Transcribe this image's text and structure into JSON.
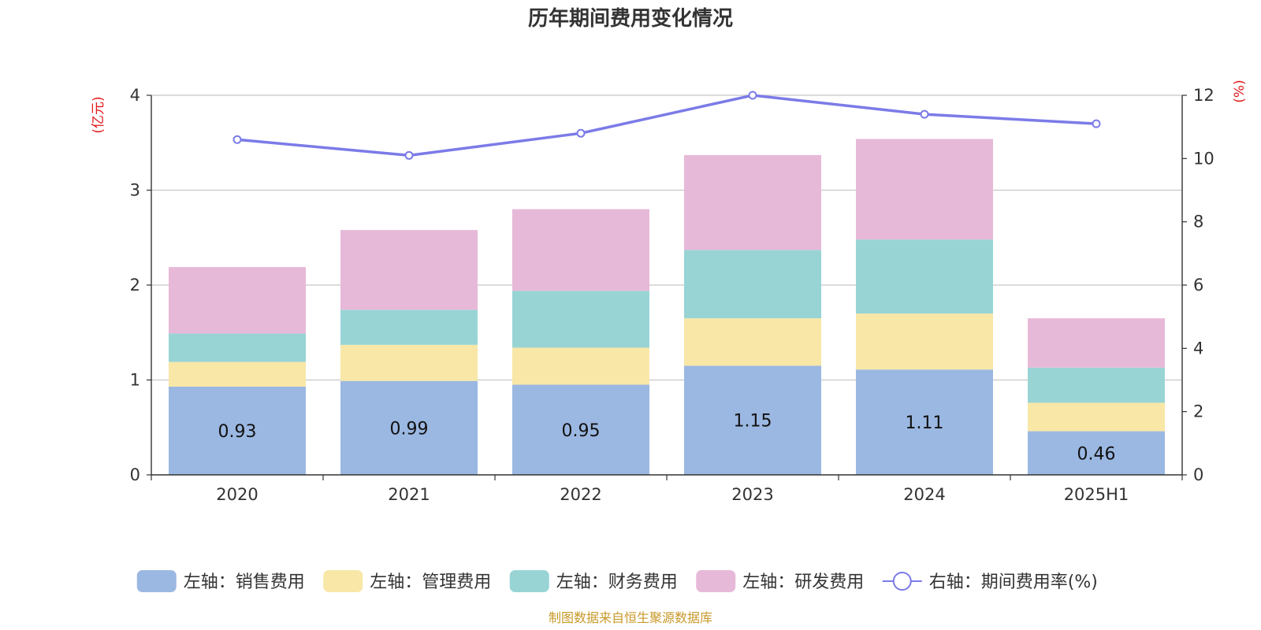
{
  "chart_data": {
    "type": "bar",
    "stacked": true,
    "title": "历年期间费用变化情况",
    "categories": [
      "2020",
      "2021",
      "2022",
      "2023",
      "2024",
      "2025H1"
    ],
    "y_left": {
      "unit": "(亿元)",
      "min": 0,
      "max": 4,
      "ticks": [
        0,
        1,
        2,
        3,
        4
      ]
    },
    "y_right": {
      "unit": "(%)",
      "min": 0,
      "max": 12,
      "ticks": [
        0,
        2,
        4,
        6,
        8,
        10,
        12
      ]
    },
    "grid": true,
    "series": [
      {
        "name": "左轴：销售费用",
        "axis": "left",
        "color": "#9bb8e2",
        "values": [
          0.93,
          0.99,
          0.95,
          1.15,
          1.11,
          0.46
        ],
        "show_labels": true
      },
      {
        "name": "左轴：管理费用",
        "axis": "left",
        "color": "#f8e7a7",
        "values": [
          0.26,
          0.38,
          0.39,
          0.5,
          0.59,
          0.3
        ]
      },
      {
        "name": "左轴：财务费用",
        "axis": "left",
        "color": "#99d4d5",
        "values": [
          0.3,
          0.37,
          0.6,
          0.72,
          0.78,
          0.37
        ]
      },
      {
        "name": "左轴：研发费用",
        "axis": "left",
        "color": "#e7b9d8",
        "values": [
          0.7,
          0.84,
          0.86,
          1.0,
          1.06,
          0.52
        ]
      },
      {
        "name": "右轴：期间费用率(%)",
        "axis": "right",
        "type": "line",
        "color": "#7b7be8",
        "values": [
          10.6,
          10.1,
          10.8,
          12.0,
          11.4,
          11.1
        ]
      }
    ],
    "legend_position": "bottom",
    "source": "制图数据来自恒生聚源数据库"
  }
}
